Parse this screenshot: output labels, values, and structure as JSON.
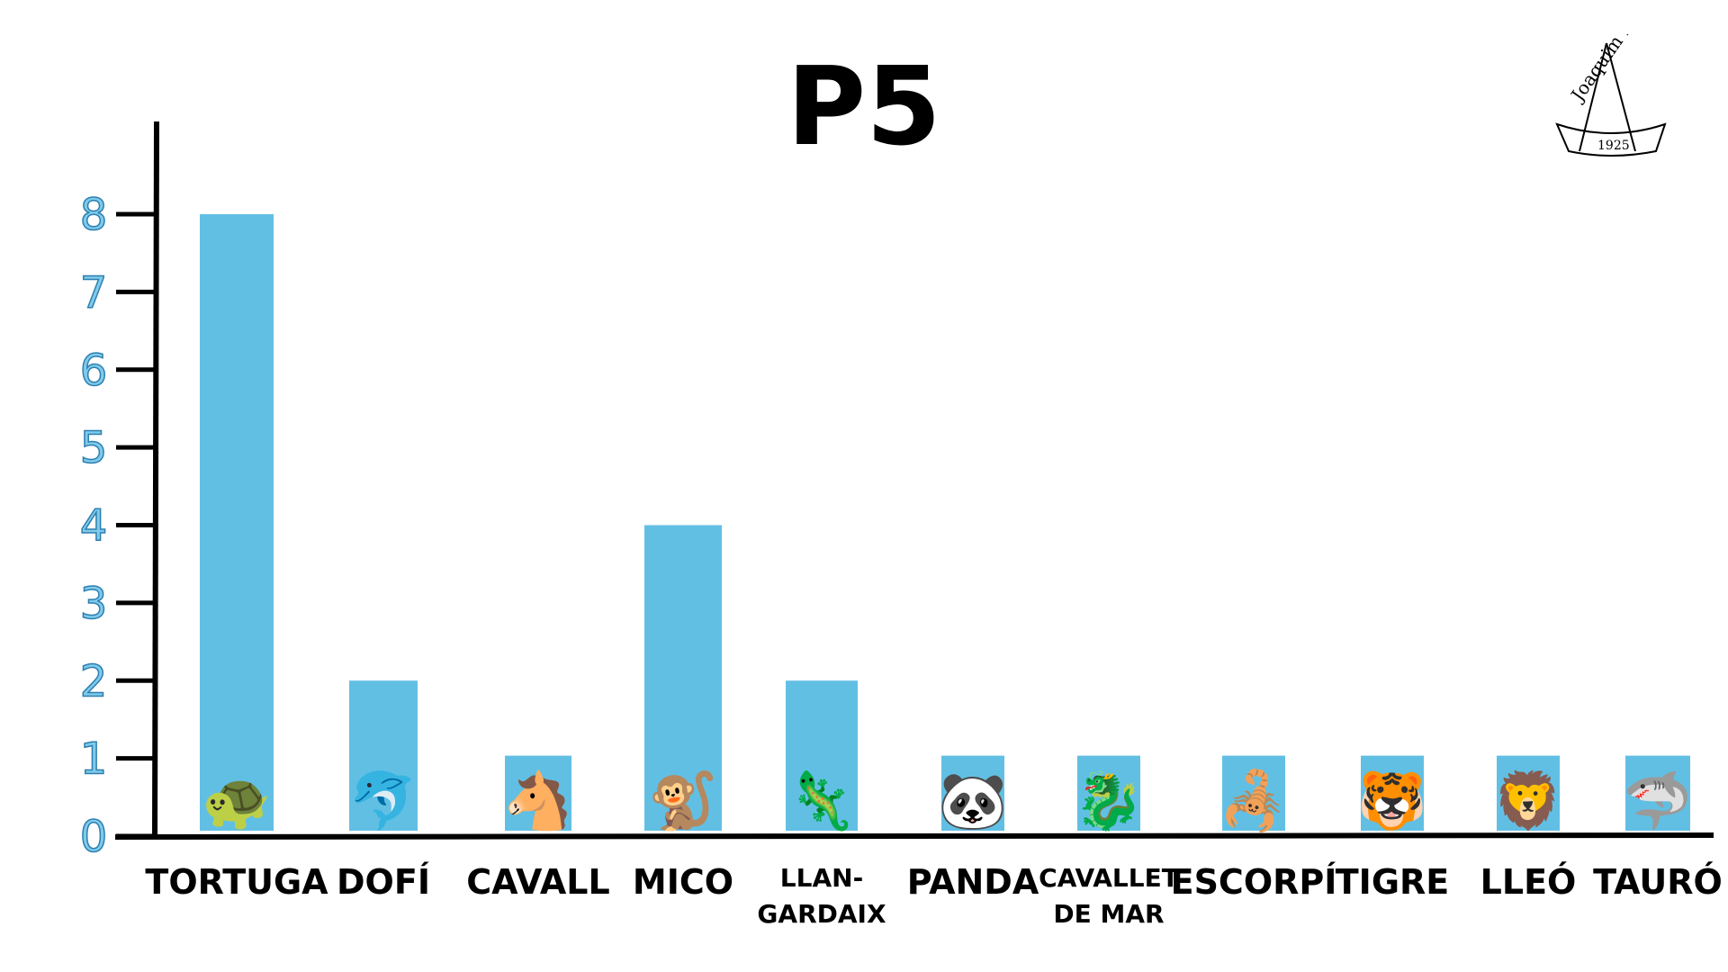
{
  "chart_data": {
    "type": "bar",
    "title": "P5",
    "categories": [
      "TORTUGA",
      "DOFÍ",
      "CAVALL",
      "MICO",
      "LLAN-\nGARDAIX",
      "PANDA",
      "CAVALLET\nDE MAR",
      "ESCORPÍ",
      "TIGRE",
      "LLEÓ",
      "TAURÓ"
    ],
    "values": [
      8,
      2,
      1,
      4,
      2,
      1,
      1,
      1,
      1,
      1,
      1
    ],
    "icons": [
      "turtle-icon",
      "dolphin-icon",
      "horse-icon",
      "monkey-icon",
      "lizard-icon",
      "panda-icon",
      "seahorse-icon",
      "scorpion-icon",
      "tiger-icon",
      "lion-icon",
      "shark-icon"
    ],
    "icon_glyphs": [
      "🐢",
      "🐬",
      "🐴",
      "🐒",
      "🦎",
      "🐼",
      "🐉",
      "🦂",
      "🐯",
      "🦁",
      "🦈"
    ],
    "yticks": [
      0,
      1,
      2,
      3,
      4,
      5,
      6,
      7,
      8
    ],
    "ylim": [
      0,
      8
    ],
    "xlabel": "",
    "ylabel": "",
    "grid": false,
    "bar_color": "#62bfe4"
  },
  "logo": {
    "text": "Joaquim Ruyra",
    "year": "1925"
  }
}
